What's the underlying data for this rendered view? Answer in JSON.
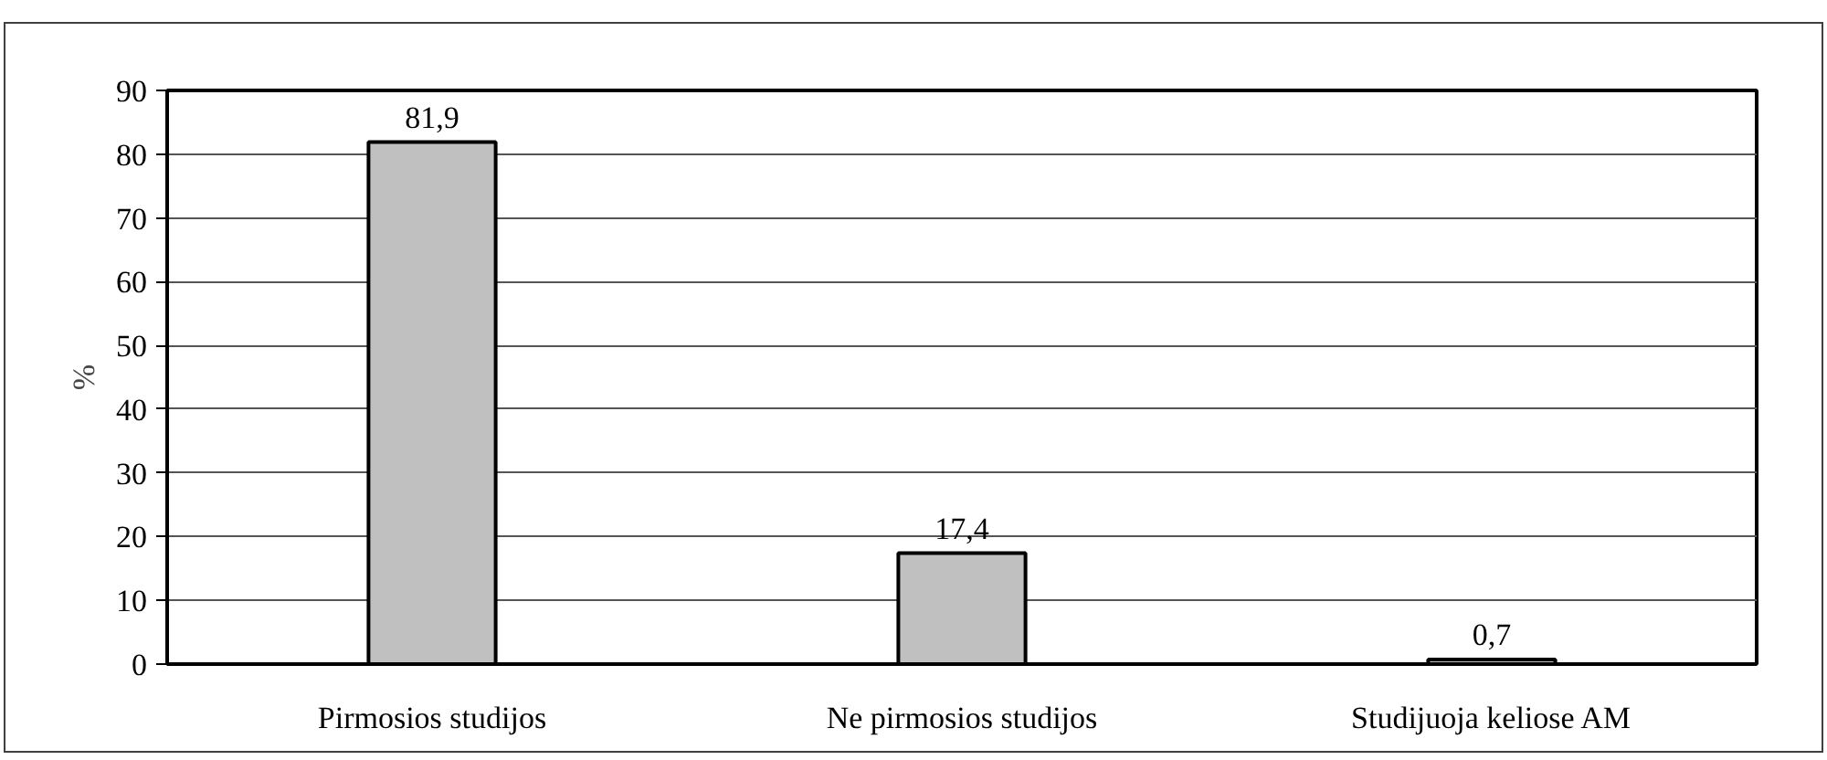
{
  "chart_data": {
    "type": "bar",
    "ylabel": "%",
    "categories": [
      "Pirmosios studijos",
      "Ne pirmosios studijos",
      "Studijuoja keliose AM"
    ],
    "values": [
      81.9,
      17.4,
      0.7
    ],
    "value_labels": [
      "81,9",
      "17,4",
      "0,7"
    ],
    "color": "#c0c0c0",
    "ylim": [
      0,
      90
    ],
    "yticks": [
      0,
      10,
      20,
      30,
      40,
      50,
      60,
      70,
      80,
      90
    ],
    "grid": "y"
  }
}
